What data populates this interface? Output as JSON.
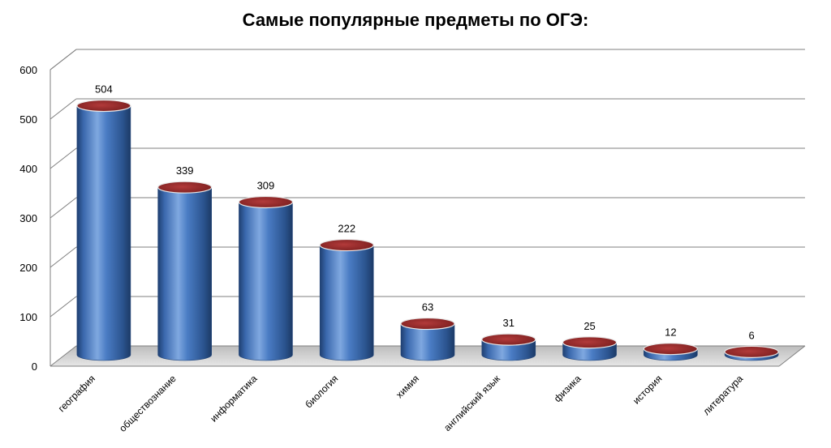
{
  "chart_data": {
    "type": "bar",
    "title": "Самые популярные предметы по ОГЭ:",
    "xlabel": "",
    "ylabel": "",
    "categories": [
      "география",
      "обществознание",
      "информатика",
      "биология",
      "химия",
      "английский язык",
      "физика",
      "история",
      "литература"
    ],
    "values": [
      504,
      339,
      309,
      222,
      63,
      31,
      25,
      12,
      6
    ],
    "ylim": [
      0,
      600
    ],
    "yticks": [
      0,
      100,
      200,
      300,
      400,
      500,
      600
    ],
    "grid": true,
    "legend": "none",
    "style": "3d-cylinder",
    "colors": {
      "bar_body": "#4a7cc4",
      "bar_dark": "#1f3f70",
      "bar_top": "#9b2d2d",
      "gridline": "#7f7f7f",
      "floor": "#c8c8c8"
    }
  }
}
